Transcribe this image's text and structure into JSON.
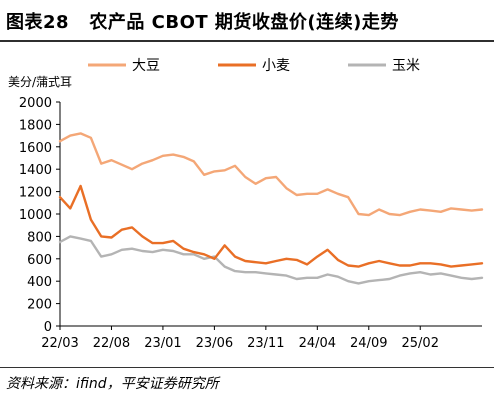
{
  "header": {
    "figure_no": "图表28",
    "title": "农产品 CBOT 期货收盘价(连续)走势"
  },
  "footer": {
    "source": "资料来源：ifind，平安证券研究所"
  },
  "colors": {
    "soybean": "#f4a777",
    "wheat": "#e96f26",
    "corn": "#b4b4b4"
  },
  "chart_data": {
    "type": "line",
    "title": "农产品 CBOT 期货收盘价(连续)走势",
    "ylabel": "美分/蒲式耳",
    "xlabel": "",
    "ylim": [
      0,
      2000
    ],
    "yticks": [
      0,
      200,
      400,
      600,
      800,
      1000,
      1200,
      1400,
      1600,
      1800,
      2000
    ],
    "xlim": [
      "2022-03",
      "2025-08"
    ],
    "xtick_labels": [
      "22/03",
      "22/08",
      "23/01",
      "23/06",
      "23/11",
      "24/04",
      "24/09",
      "25/02"
    ],
    "grid": false,
    "legend_position": "top",
    "series": [
      {
        "name": "大豆",
        "color": "#f4a777",
        "x": [
          "2022-03",
          "2022-04",
          "2022-05",
          "2022-06",
          "2022-07",
          "2022-08",
          "2022-09",
          "2022-10",
          "2022-11",
          "2022-12",
          "2023-01",
          "2023-02",
          "2023-03",
          "2023-04",
          "2023-05",
          "2023-06",
          "2023-07",
          "2023-08",
          "2023-09",
          "2023-10",
          "2023-11",
          "2023-12",
          "2024-01",
          "2024-02",
          "2024-03",
          "2024-04",
          "2024-05",
          "2024-06",
          "2024-07",
          "2024-08",
          "2024-09",
          "2024-10",
          "2024-11",
          "2024-12",
          "2025-01",
          "2025-02",
          "2025-03",
          "2025-04",
          "2025-05",
          "2025-06",
          "2025-07",
          "2025-08"
        ],
        "values": [
          1650,
          1700,
          1720,
          1680,
          1450,
          1480,
          1440,
          1400,
          1450,
          1480,
          1520,
          1530,
          1510,
          1470,
          1350,
          1380,
          1390,
          1430,
          1330,
          1270,
          1320,
          1330,
          1230,
          1170,
          1180,
          1180,
          1220,
          1180,
          1150,
          1000,
          990,
          1040,
          1000,
          990,
          1020,
          1040,
          1030,
          1020,
          1050,
          1040,
          1030,
          1040
        ]
      },
      {
        "name": "小麦",
        "color": "#e96f26",
        "x": [
          "2022-03",
          "2022-04",
          "2022-05",
          "2022-06",
          "2022-07",
          "2022-08",
          "2022-09",
          "2022-10",
          "2022-11",
          "2022-12",
          "2023-01",
          "2023-02",
          "2023-03",
          "2023-04",
          "2023-05",
          "2023-06",
          "2023-07",
          "2023-08",
          "2023-09",
          "2023-10",
          "2023-11",
          "2023-12",
          "2024-01",
          "2024-02",
          "2024-03",
          "2024-04",
          "2024-05",
          "2024-06",
          "2024-07",
          "2024-08",
          "2024-09",
          "2024-10",
          "2024-11",
          "2024-12",
          "2025-01",
          "2025-02",
          "2025-03",
          "2025-04",
          "2025-05",
          "2025-06",
          "2025-07",
          "2025-08"
        ],
        "values": [
          1150,
          1050,
          1250,
          950,
          800,
          790,
          860,
          880,
          800,
          740,
          740,
          760,
          690,
          660,
          640,
          600,
          720,
          620,
          580,
          570,
          560,
          580,
          600,
          590,
          550,
          620,
          680,
          590,
          540,
          530,
          560,
          580,
          560,
          540,
          540,
          560,
          560,
          550,
          530,
          540,
          550,
          560
        ]
      },
      {
        "name": "玉米",
        "color": "#b4b4b4",
        "x": [
          "2022-03",
          "2022-04",
          "2022-05",
          "2022-06",
          "2022-07",
          "2022-08",
          "2022-09",
          "2022-10",
          "2022-11",
          "2022-12",
          "2023-01",
          "2023-02",
          "2023-03",
          "2023-04",
          "2023-05",
          "2023-06",
          "2023-07",
          "2023-08",
          "2023-09",
          "2023-10",
          "2023-11",
          "2023-12",
          "2024-01",
          "2024-02",
          "2024-03",
          "2024-04",
          "2024-05",
          "2024-06",
          "2024-07",
          "2024-08",
          "2024-09",
          "2024-10",
          "2024-11",
          "2024-12",
          "2025-01",
          "2025-02",
          "2025-03",
          "2025-04",
          "2025-05",
          "2025-06",
          "2025-07",
          "2025-08"
        ],
        "values": [
          750,
          800,
          780,
          760,
          620,
          640,
          680,
          690,
          670,
          660,
          680,
          670,
          640,
          640,
          600,
          620,
          530,
          490,
          480,
          480,
          470,
          460,
          450,
          420,
          430,
          430,
          460,
          440,
          400,
          380,
          400,
          410,
          420,
          450,
          470,
          480,
          460,
          470,
          450,
          430,
          420,
          430
        ]
      }
    ]
  }
}
